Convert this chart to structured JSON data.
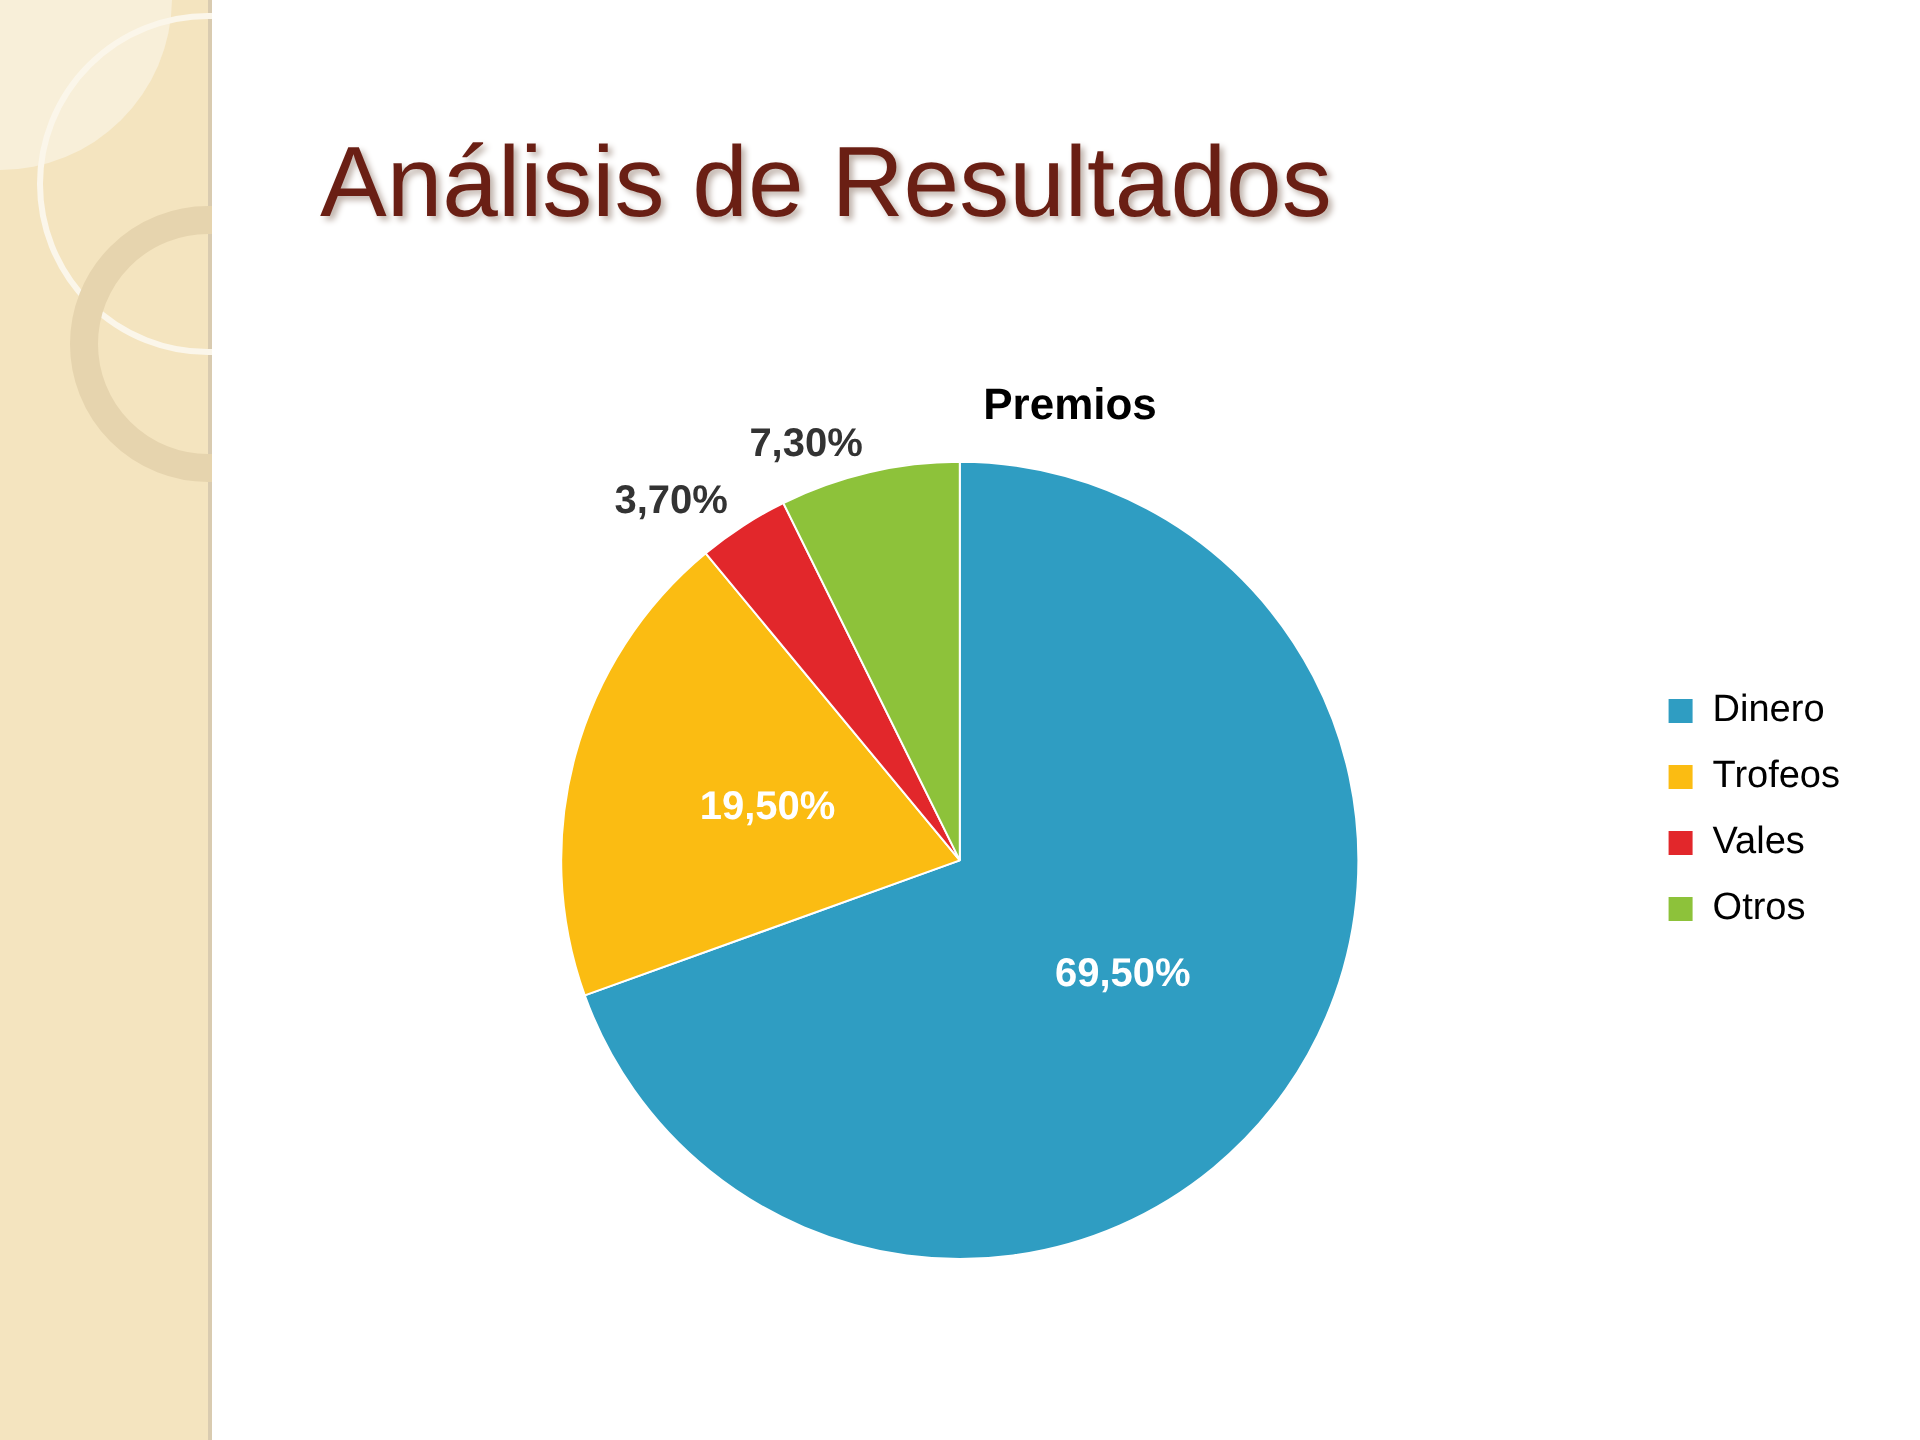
{
  "chart_data": {
    "type": "pie",
    "title": "Análisis de Resultados",
    "subtitle": "Premios",
    "categories": [
      "Dinero",
      "Trofeos",
      "Vales",
      "Otros"
    ],
    "values": [
      69.5,
      19.5,
      3.7,
      7.3
    ],
    "colors": [
      "#2f9dc2",
      "#fbbc12",
      "#e2272b",
      "#8dc23a"
    ],
    "value_labels": [
      "69,50%",
      "19,50%",
      "3,70%",
      "7,30%"
    ],
    "legend": "right"
  }
}
